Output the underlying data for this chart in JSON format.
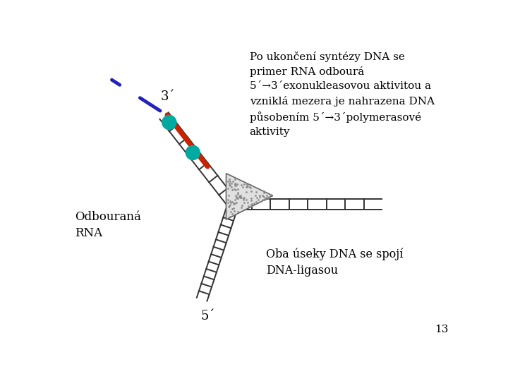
{
  "label_3prime": "3´",
  "label_5prime": "5´",
  "label_odbouvana": "Odbouraná\nRNA",
  "label_ligasa": "Oba úseky DNA se spojí\nDNA-ligasou",
  "main_text_line1": "Po ukončení syntézy DNA se",
  "main_text_line2": "primer RNA odbourá",
  "main_text_line3": "5´→3´exonukleasovou aktivitou a",
  "main_text_line4": "vzniklá mezera je nahrazena DNA",
  "main_text_line5": "působením 5´→3´polymerasové",
  "main_text_line6": "aktivity",
  "page_num": "13",
  "dna_color": "#333333",
  "rna_color": "#cc2200",
  "dashed_color": "#2222bb",
  "circle_color": "#00aaa0",
  "enzyme_fill": "#e0e0e0",
  "enzyme_edge": "#666666",
  "bg_color": "#ffffff"
}
